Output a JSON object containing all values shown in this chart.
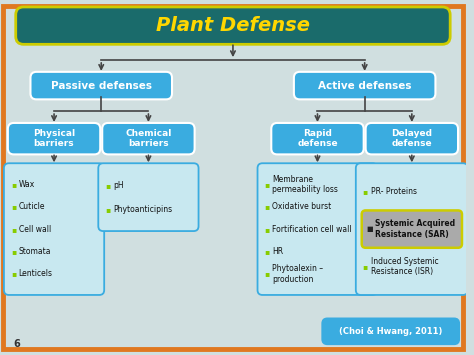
{
  "title": "Plant Defense",
  "title_color": "#FFD700",
  "title_bg": "#1a6b6b",
  "title_border": "#cccc00",
  "bg_color": "#d0dfe0",
  "outer_border_color": "#E07820",
  "box_color_teal": "#3aace0",
  "box_color_light": "#aaddee",
  "passive_label": "Passive defenses",
  "active_label": "Active defenses",
  "passive_sub_0": "Physical\nbarriers",
  "passive_sub_1": "Chemical\nbarriers",
  "active_sub_0": "Rapid\ndefense",
  "active_sub_1": "Delayed\ndefense",
  "passive_items_1": [
    "Wax",
    "Cuticle",
    "Cell wall",
    "Stomata",
    "Lenticels"
  ],
  "passive_items_2": [
    "pH",
    "Phytoanticipins"
  ],
  "active_items_1": [
    "Membrane\npermeability loss",
    "Oxidative burst",
    "Fortification cell wall",
    "HR",
    "Phytoalexin –\nproduction"
  ],
  "active_items_2_0": "PR- Proteins",
  "active_items_2_1": "Systemic Acquired\nResistance (SAR)",
  "active_items_2_2": "Induced Systemic\nResistance (ISR)",
  "citation": "(Choi & Hwang, 2011)",
  "page_num": "6",
  "line_color": "#444444",
  "bullet_color_green": "#88cc00",
  "bullet_color_dark": "#444444",
  "sar_bg": "#aaaaaa",
  "sar_border": "#cccc00",
  "list_bg": "#c8e8f0",
  "list_border": "#3aace0"
}
